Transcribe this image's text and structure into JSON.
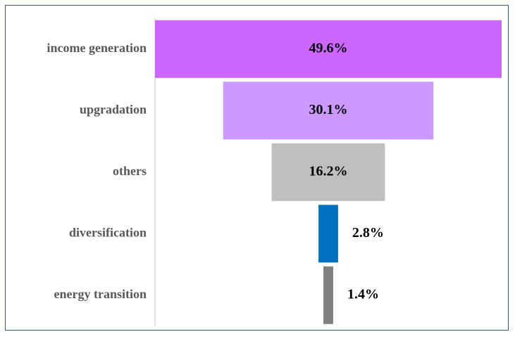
{
  "chart_data": {
    "type": "bar",
    "orientation": "horizontal-funnel",
    "categories": [
      "income generation",
      "upgradation",
      "others",
      "diversification",
      "energy transition"
    ],
    "values": [
      49.6,
      30.1,
      16.2,
      2.8,
      1.4
    ],
    "value_labels": [
      "49.6%",
      "30.1%",
      "16.2%",
      "2.8%",
      "1.4%"
    ],
    "colors": [
      "#cc66ff",
      "#cc99ff",
      "#bfbfbf",
      "#0070c0",
      "#808080"
    ],
    "title": "",
    "xlabel": "",
    "ylabel": "",
    "xlim": [
      0,
      49.6
    ],
    "grid": false,
    "legend": "none"
  }
}
